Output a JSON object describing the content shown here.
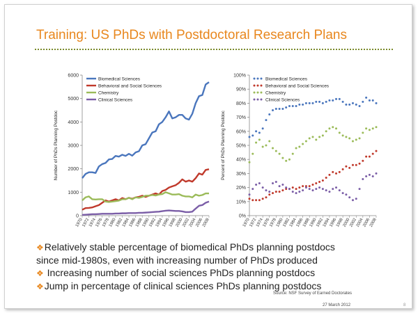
{
  "slide": {
    "title": "Training:  US PhDs with Postdoctoral Research Plans",
    "bullets": [
      {
        "marker": "❖",
        "text": "Relatively stable percentage of biomedical PhDs planning postdocs"
      },
      {
        "marker": "",
        "text": "since mid-1980s, even with increasing number of PhDs produced"
      },
      {
        "marker": "❖",
        "text": " Increasing number of social sciences PhDs planning postdocs"
      },
      {
        "marker": "❖",
        "text": "Jump in percentage of clinical sciences PhDs planning postdocs"
      }
    ],
    "source": "Source: NSF Survey of Earned Doctorates",
    "date": "27 March 2012",
    "page_number": "8"
  },
  "colors": {
    "title": "#e8871e",
    "biomedical": "#4a76bd",
    "behavioral": "#c0392b",
    "chemistry": "#9bbb59",
    "clinical": "#7b5ea7"
  },
  "chart_data": [
    {
      "type": "line",
      "ylabel": "Number of PhDs Planning Postdoc",
      "ylim": [
        0,
        6000
      ],
      "yticks": [
        0,
        1000,
        2000,
        3000,
        4000,
        5000,
        6000
      ],
      "x": [
        1970,
        1971,
        1972,
        1973,
        1974,
        1975,
        1976,
        1977,
        1978,
        1979,
        1980,
        1981,
        1982,
        1983,
        1984,
        1985,
        1986,
        1987,
        1988,
        1989,
        1990,
        1991,
        1992,
        1993,
        1994,
        1995,
        1996,
        1997,
        1998,
        1999,
        2000,
        2001,
        2002,
        2003,
        2004,
        2005,
        2006,
        2007,
        2008
      ],
      "xticks": [
        "1970",
        "1972",
        "1974",
        "1976",
        "1978",
        "1980",
        "1982",
        "1984",
        "1986",
        "1988",
        "1990",
        "1992",
        "1994",
        "1996",
        "1998",
        "2000",
        "2002",
        "2004",
        "2006",
        "2008"
      ],
      "legend_position": "top-left",
      "series": [
        {
          "name": "Biomedical Sciences",
          "color": "#4a76bd",
          "values": [
            1600,
            1780,
            1850,
            1850,
            1820,
            2100,
            2200,
            2250,
            2400,
            2420,
            2550,
            2520,
            2600,
            2550,
            2640,
            2560,
            2700,
            2750,
            3000,
            3050,
            3300,
            3550,
            3600,
            3900,
            4000,
            4200,
            4450,
            4150,
            4200,
            4300,
            4300,
            4150,
            4100,
            4350,
            4800,
            5100,
            5150,
            5600,
            5700
          ]
        },
        {
          "name": "Behavioral and Social Sciences",
          "color": "#c0392b",
          "values": [
            250,
            320,
            330,
            350,
            400,
            450,
            550,
            650,
            600,
            650,
            700,
            650,
            750,
            700,
            760,
            720,
            780,
            800,
            850,
            800,
            850,
            900,
            950,
            900,
            1050,
            1100,
            1200,
            1250,
            1300,
            1400,
            1550,
            1450,
            1500,
            1450,
            1600,
            1800,
            1750,
            1950,
            1980
          ]
        },
        {
          "name": "Chemistry",
          "color": "#9bbb59",
          "values": [
            650,
            780,
            820,
            700,
            690,
            700,
            700,
            600,
            580,
            600,
            620,
            640,
            700,
            700,
            760,
            700,
            780,
            760,
            800,
            850,
            850,
            880,
            860,
            900,
            920,
            1000,
            950,
            900,
            900,
            920,
            850,
            820,
            820,
            780,
            900,
            850,
            880,
            950,
            950
          ]
        },
        {
          "name": "Clinical Sciences",
          "color": "#7b5ea7",
          "values": [
            30,
            40,
            50,
            60,
            60,
            70,
            80,
            80,
            80,
            80,
            90,
            90,
            100,
            100,
            110,
            110,
            110,
            120,
            120,
            130,
            140,
            150,
            160,
            170,
            190,
            210,
            220,
            210,
            200,
            200,
            180,
            150,
            150,
            170,
            300,
            420,
            450,
            550,
            600
          ]
        }
      ]
    },
    {
      "type": "scatter",
      "ylabel": "Percent of PhDs Planning Postdoc",
      "ylim": [
        0,
        100
      ],
      "yticks": [
        "0%",
        "10%",
        "20%",
        "30%",
        "40%",
        "50%",
        "60%",
        "70%",
        "80%",
        "90%",
        "100%"
      ],
      "x": [
        1970,
        1971,
        1972,
        1973,
        1974,
        1975,
        1976,
        1977,
        1978,
        1979,
        1980,
        1981,
        1982,
        1983,
        1984,
        1985,
        1986,
        1987,
        1988,
        1989,
        1990,
        1991,
        1992,
        1993,
        1994,
        1995,
        1996,
        1997,
        1998,
        1999,
        2000,
        2001,
        2002,
        2003,
        2004,
        2005,
        2006,
        2007,
        2008
      ],
      "xticks": [
        "1970",
        "1972",
        "1974",
        "1976",
        "1978",
        "1980",
        "1982",
        "1984",
        "1986",
        "1988",
        "1990",
        "1992",
        "1994",
        "1996",
        "1998",
        "2000",
        "2002",
        "2004",
        "2006",
        "2008"
      ],
      "legend_position": "top-left",
      "series": [
        {
          "name": "Biomedical Sciences",
          "color": "#4a76bd",
          "values": [
            56,
            57,
            60,
            59,
            62,
            68,
            72,
            75,
            76,
            76,
            76,
            77,
            78,
            78,
            78,
            79,
            79,
            80,
            80,
            80,
            81,
            81,
            80,
            81,
            82,
            82,
            83,
            83,
            81,
            79,
            79,
            80,
            79,
            78,
            81,
            84,
            82,
            82,
            80
          ]
        },
        {
          "name": "Behavioral and Social Sciences",
          "color": "#c0392b",
          "values": [
            12,
            11,
            11,
            11,
            12,
            13,
            15,
            16,
            17,
            17,
            18,
            19,
            19,
            20,
            19,
            20,
            21,
            21,
            21,
            22,
            23,
            24,
            25,
            27,
            29,
            31,
            30,
            31,
            33,
            35,
            34,
            36,
            36,
            37,
            39,
            42,
            42,
            44,
            46
          ]
        },
        {
          "name": "Chemistry",
          "color": "#9bbb59",
          "values": [
            38,
            44,
            52,
            54,
            49,
            50,
            53,
            48,
            46,
            44,
            41,
            39,
            40,
            44,
            48,
            49,
            51,
            53,
            55,
            56,
            54,
            56,
            57,
            60,
            62,
            63,
            62,
            59,
            57,
            56,
            55,
            53,
            54,
            55,
            59,
            62,
            61,
            62,
            63
          ]
        },
        {
          "name": "Clinical Sciences",
          "color": "#7b5ea7",
          "values": [
            15,
            19,
            22,
            23,
            20,
            18,
            17,
            23,
            24,
            21,
            22,
            20,
            19,
            17,
            16,
            17,
            18,
            20,
            19,
            18,
            19,
            20,
            19,
            18,
            17,
            19,
            20,
            18,
            16,
            15,
            13,
            11,
            12,
            19,
            26,
            28,
            29,
            28,
            30
          ]
        }
      ]
    }
  ]
}
